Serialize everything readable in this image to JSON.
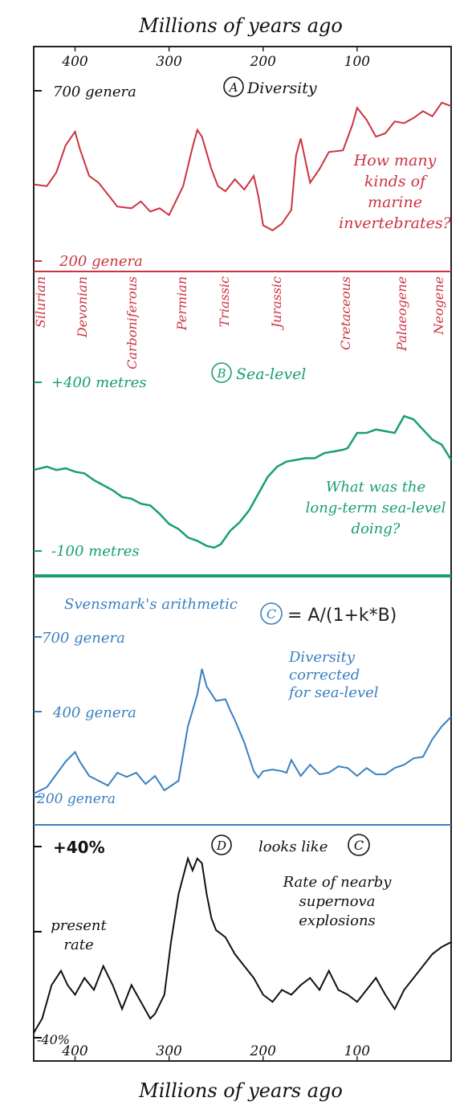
{
  "axis": {
    "title_top": "Millions of years ago",
    "title_bottom": "Millions of years ago",
    "ticks_top": [
      "400",
      "300",
      "200",
      "100"
    ],
    "ticks_bottom": [
      "400",
      "300",
      "200",
      "100"
    ],
    "tick_values": [
      400,
      300,
      200,
      100
    ],
    "xlim": [
      444,
      0
    ]
  },
  "colors": {
    "a": "#cc3340",
    "b": "#18a06a",
    "c": "#3b7fc0",
    "d": "#111111",
    "frame": "#222222"
  },
  "chart_data": [
    {
      "type": "line",
      "panel": "A",
      "title": "Diversity",
      "ymax_label": "700 genera",
      "ymin_label": "200 genera",
      "ylim": [
        200,
        700
      ],
      "annotation": [
        "How many",
        "kinds of",
        "marine",
        "invertebrates?"
      ],
      "x": [
        444,
        430,
        420,
        410,
        400,
        395,
        385,
        375,
        365,
        355,
        340,
        330,
        320,
        310,
        300,
        285,
        275,
        270,
        265,
        255,
        248,
        240,
        230,
        220,
        210,
        205,
        200,
        190,
        180,
        170,
        165,
        160,
        150,
        140,
        130,
        115,
        105,
        100,
        90,
        80,
        70,
        60,
        50,
        40,
        30,
        20,
        10,
        0
      ],
      "y": [
        425,
        420,
        460,
        540,
        580,
        530,
        450,
        430,
        395,
        360,
        355,
        375,
        345,
        355,
        335,
        420,
        535,
        585,
        565,
        470,
        420,
        405,
        440,
        410,
        450,
        390,
        305,
        290,
        310,
        350,
        510,
        560,
        430,
        470,
        520,
        525,
        600,
        650,
        615,
        565,
        575,
        610,
        605,
        620,
        640,
        625,
        665,
        655
      ]
    },
    {
      "type": "line",
      "panel": "B",
      "title": "Sea-level",
      "ymax_label": "+400 metres",
      "ymin_label": "-100 metres",
      "ylim": [
        -100,
        400
      ],
      "periods": [
        "Silurian",
        "Devonian",
        "Carboniferous",
        "Permian",
        "Triassic",
        "Jurassic",
        "Cretaceous",
        "Palaeogene",
        "Neogene"
      ],
      "annotation": [
        "What was the",
        "long-term sea-level",
        "doing?"
      ],
      "x": [
        444,
        430,
        420,
        410,
        400,
        390,
        380,
        370,
        360,
        350,
        340,
        330,
        320,
        310,
        300,
        290,
        280,
        270,
        260,
        252,
        245,
        235,
        225,
        215,
        205,
        195,
        185,
        175,
        165,
        155,
        145,
        135,
        125,
        115,
        110,
        100,
        90,
        80,
        70,
        60,
        50,
        40,
        30,
        20,
        10,
        0
      ],
      "y": [
        140,
        150,
        140,
        145,
        135,
        130,
        110,
        95,
        80,
        60,
        55,
        40,
        35,
        10,
        -20,
        -35,
        -60,
        -70,
        -85,
        -90,
        -80,
        -40,
        -15,
        20,
        70,
        120,
        150,
        165,
        170,
        175,
        175,
        190,
        195,
        200,
        205,
        250,
        250,
        260,
        255,
        250,
        300,
        290,
        260,
        230,
        215,
        170
      ]
    },
    {
      "type": "line",
      "panel": "C",
      "title": "= A/(1+k*B)",
      "subtitle": "Svensmark's arithmetic",
      "ymax_label": "700 genera",
      "ymid_label": "400 genera",
      "ymin_label": "200 genera",
      "ylim": [
        200,
        700
      ],
      "y_ticks": [
        700,
        400,
        200
      ],
      "annotation": [
        "Diversity",
        "corrected",
        "for sea-level"
      ],
      "x": [
        444,
        430,
        420,
        410,
        400,
        395,
        385,
        375,
        365,
        355,
        345,
        335,
        325,
        315,
        305,
        290,
        280,
        270,
        265,
        260,
        250,
        240,
        235,
        230,
        220,
        210,
        205,
        200,
        190,
        180,
        175,
        170,
        160,
        150,
        140,
        130,
        120,
        110,
        100,
        90,
        80,
        70,
        60,
        50,
        40,
        30,
        20,
        10,
        0
      ],
      "y": [
        210,
        230,
        270,
        310,
        340,
        310,
        265,
        250,
        235,
        275,
        262,
        275,
        240,
        265,
        220,
        250,
        420,
        520,
        600,
        545,
        500,
        505,
        470,
        440,
        370,
        280,
        260,
        280,
        285,
        280,
        275,
        315,
        265,
        300,
        270,
        275,
        295,
        290,
        265,
        290,
        270,
        270,
        290,
        300,
        320,
        325,
        380,
        420,
        450
      ]
    },
    {
      "type": "line",
      "panel": "D",
      "title": "looks like",
      "title_badge": "C",
      "ymax_label": "+40%",
      "ymin_label": "-40%",
      "mid_label": [
        "present",
        "rate"
      ],
      "ylim": [
        -40,
        40
      ],
      "annotation": [
        "Rate of nearby",
        "supernova",
        "explosions"
      ],
      "x": [
        444,
        435,
        425,
        415,
        408,
        400,
        390,
        380,
        370,
        360,
        350,
        340,
        330,
        320,
        315,
        305,
        298,
        290,
        280,
        275,
        270,
        265,
        260,
        255,
        250,
        240,
        230,
        220,
        210,
        200,
        190,
        180,
        170,
        160,
        150,
        140,
        130,
        120,
        110,
        100,
        90,
        80,
        70,
        60,
        50,
        40,
        30,
        20,
        10,
        0
      ],
      "y": [
        -38,
        -32,
        -18,
        -12,
        -18,
        -22,
        -15,
        -20,
        -10,
        -18,
        -28,
        -18,
        -25,
        -32,
        -30,
        -22,
        0,
        20,
        35,
        30,
        35,
        33,
        20,
        10,
        5,
        2,
        -5,
        -10,
        -15,
        -22,
        -25,
        -20,
        -22,
        -18,
        -15,
        -20,
        -12,
        -20,
        -22,
        -25,
        -20,
        -15,
        -22,
        -28,
        -20,
        -15,
        -10,
        -5,
        -2,
        0
      ]
    }
  ]
}
